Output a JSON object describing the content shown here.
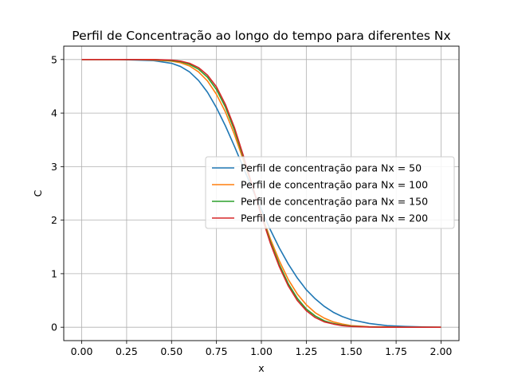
{
  "chart_data": {
    "type": "line",
    "title": "Perfil de Concentração ao longo do tempo para diferentes Nx",
    "xlabel": "x",
    "ylabel": "C",
    "xlim": [
      -0.1,
      2.1
    ],
    "ylim": [
      -0.25,
      5.25
    ],
    "xticks": [
      "0.00",
      "0.25",
      "0.50",
      "0.75",
      "1.00",
      "1.25",
      "1.50",
      "1.75",
      "2.00"
    ],
    "xtick_values": [
      0,
      0.25,
      0.5,
      0.75,
      1.0,
      1.25,
      1.5,
      1.75,
      2.0
    ],
    "yticks": [
      "0",
      "1",
      "2",
      "3",
      "4",
      "5"
    ],
    "ytick_values": [
      0,
      1,
      2,
      3,
      4,
      5
    ],
    "grid": true,
    "legend_position": "center-right",
    "series": [
      {
        "name": "Perfil de concentração para Nx = 50",
        "color": "#1f77b4",
        "x": [
          0,
          0.1,
          0.2,
          0.3,
          0.4,
          0.5,
          0.55,
          0.6,
          0.65,
          0.7,
          0.75,
          0.8,
          0.85,
          0.9,
          0.95,
          1.0,
          1.05,
          1.1,
          1.15,
          1.2,
          1.25,
          1.3,
          1.35,
          1.4,
          1.45,
          1.5,
          1.6,
          1.7,
          1.8,
          1.9,
          2.0
        ],
        "y": [
          5,
          5,
          5,
          4.99,
          4.98,
          4.93,
          4.87,
          4.77,
          4.61,
          4.39,
          4.1,
          3.76,
          3.38,
          2.98,
          2.58,
          2.2,
          1.82,
          1.48,
          1.18,
          0.92,
          0.7,
          0.53,
          0.39,
          0.28,
          0.2,
          0.14,
          0.07,
          0.03,
          0.015,
          0.005,
          0
        ]
      },
      {
        "name": "Perfil de concentração para Nx = 100",
        "color": "#ff7f0e",
        "x": [
          0,
          0.1,
          0.2,
          0.3,
          0.4,
          0.5,
          0.55,
          0.6,
          0.65,
          0.7,
          0.75,
          0.8,
          0.85,
          0.9,
          0.95,
          1.0,
          1.05,
          1.1,
          1.15,
          1.2,
          1.25,
          1.3,
          1.35,
          1.4,
          1.45,
          1.5,
          1.6,
          1.7,
          1.8,
          1.9,
          2.0
        ],
        "y": [
          5,
          5,
          5,
          5,
          4.99,
          4.97,
          4.94,
          4.88,
          4.77,
          4.6,
          4.35,
          4.02,
          3.6,
          3.12,
          2.62,
          2.12,
          1.65,
          1.24,
          0.89,
          0.62,
          0.42,
          0.27,
          0.17,
          0.1,
          0.06,
          0.03,
          0.01,
          0.005,
          0,
          0,
          0
        ]
      },
      {
        "name": "Perfil de concentração para Nx = 150",
        "color": "#2ca02c",
        "x": [
          0,
          0.1,
          0.2,
          0.3,
          0.4,
          0.5,
          0.55,
          0.6,
          0.65,
          0.7,
          0.75,
          0.8,
          0.85,
          0.9,
          0.95,
          1.0,
          1.05,
          1.1,
          1.15,
          1.2,
          1.25,
          1.3,
          1.35,
          1.4,
          1.45,
          1.5,
          1.6,
          1.7,
          1.8,
          1.9,
          2.0
        ],
        "y": [
          5,
          5,
          5,
          5,
          5,
          4.98,
          4.96,
          4.91,
          4.82,
          4.67,
          4.44,
          4.11,
          3.68,
          3.17,
          2.63,
          2.1,
          1.6,
          1.17,
          0.81,
          0.54,
          0.34,
          0.21,
          0.12,
          0.07,
          0.04,
          0.02,
          0.005,
          0,
          0,
          0,
          0
        ]
      },
      {
        "name": "Perfil de concentração para Nx = 200",
        "color": "#d62728",
        "x": [
          0,
          0.1,
          0.2,
          0.3,
          0.4,
          0.5,
          0.55,
          0.6,
          0.65,
          0.7,
          0.75,
          0.8,
          0.85,
          0.9,
          0.95,
          1.0,
          1.05,
          1.1,
          1.15,
          1.2,
          1.25,
          1.3,
          1.35,
          1.4,
          1.45,
          1.5,
          1.6,
          1.7,
          1.8,
          1.9,
          2.0
        ],
        "y": [
          5,
          5,
          5,
          5,
          5,
          4.99,
          4.97,
          4.93,
          4.85,
          4.71,
          4.49,
          4.16,
          3.73,
          3.2,
          2.64,
          2.09,
          1.57,
          1.13,
          0.77,
          0.5,
          0.31,
          0.18,
          0.1,
          0.06,
          0.03,
          0.015,
          0.004,
          0,
          0,
          0,
          0
        ]
      }
    ]
  }
}
